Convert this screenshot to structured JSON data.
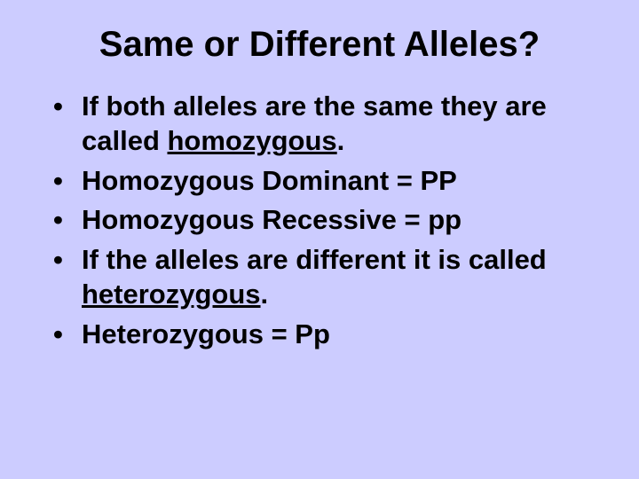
{
  "slide": {
    "title": "Same or Different Alleles?",
    "bullets": [
      {
        "prefix": "If both alleles are the same they are called ",
        "underlined": "homozygous",
        "suffix": "."
      },
      {
        "prefix": "Homozygous Dominant  =  PP",
        "underlined": "",
        "suffix": ""
      },
      {
        "prefix": "Homozygous Recessive  =  pp",
        "underlined": "",
        "suffix": ""
      },
      {
        "prefix": "If the alleles are different it is called ",
        "underlined": "heterozygous",
        "suffix": "."
      },
      {
        "prefix": "Heterozygous  =  Pp",
        "underlined": "",
        "suffix": ""
      }
    ],
    "background_color": "#ccccff",
    "text_color": "#000000",
    "title_fontsize": 40,
    "bullet_fontsize": 31
  }
}
